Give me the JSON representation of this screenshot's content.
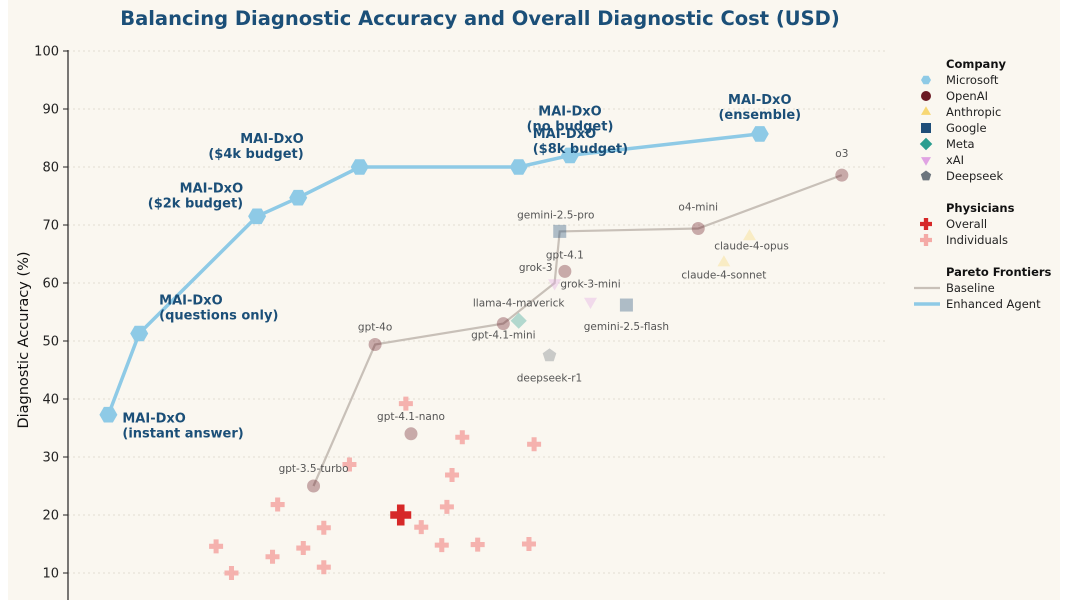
{
  "chart_data": {
    "type": "scatter",
    "title": "Balancing Diagnostic Accuracy and Overall Diagnostic Cost (USD)",
    "ylabel": "Diagnostic Accuracy (%)",
    "ylim": [
      8,
      105
    ],
    "yticks": [
      10,
      20,
      30,
      40,
      50,
      60,
      70,
      80,
      90,
      100
    ],
    "grid": true,
    "legend_position": "right",
    "colors": {
      "microsoft": "#8ecae6",
      "openai": "#6b1a24",
      "anthropic": "#f7d774",
      "google": "#1f4e79",
      "meta": "#2a9d8f",
      "xai": "#e0a3e3",
      "deepseek": "#6c757d",
      "physician": "#d62828",
      "individual": "#f4aaa6",
      "baseline": "#c8c0b8",
      "enhanced": "#8ecae6",
      "mai_label": "#1b4f78",
      "plot_bg": "#faf7f0"
    },
    "mai_dxo": {
      "name": "Enhanced Agent",
      "points": [
        {
          "label_line1": "MAI-DxO",
          "label_line2": "(instant answer)",
          "x": 0.3,
          "y": 37.3
        },
        {
          "label_line1": "MAI-DxO",
          "label_line2": "(questions only)",
          "x": 0.9,
          "y": 51.3
        },
        {
          "label_line1": "MAI-DxO",
          "label_line2": "($2k budget)",
          "x": 3.2,
          "y": 71.5
        },
        {
          "label_line1": "",
          "label_line2": "",
          "x": 4.0,
          "y": 74.7
        },
        {
          "label_line1": "MAI-DxO",
          "label_line2": "($4k budget)",
          "x": 5.2,
          "y": 80.0
        },
        {
          "label_line1": "MAI-DxO",
          "label_line2": "($8k budget)",
          "x": 8.3,
          "y": 80.0
        },
        {
          "label_line1": "MAI-DxO",
          "label_line2": "(no budget)",
          "x": 9.3,
          "y": 82.0
        },
        {
          "label_line1": "MAI-DxO",
          "label_line2": "(ensemble)",
          "x": 13.0,
          "y": 85.7
        }
      ]
    },
    "baseline_models": [
      {
        "label": "gpt-3.5-turbo",
        "company": "openai",
        "x": 4.3,
        "y": 25.0
      },
      {
        "label": "gpt-4o",
        "company": "openai",
        "x": 5.5,
        "y": 49.4
      },
      {
        "label": "gpt-4.1-nano",
        "company": "openai",
        "x": 6.2,
        "y": 34.0
      },
      {
        "label": "gpt-4.1-mini",
        "company": "openai",
        "x": 8.0,
        "y": 53.0
      },
      {
        "label": "llama-4-maverick",
        "company": "meta",
        "x": 8.3,
        "y": 53.5
      },
      {
        "label": "grok-3",
        "company": "xai",
        "x": 9.0,
        "y": 60.0
      },
      {
        "label": "gpt-4.1",
        "company": "openai",
        "x": 9.2,
        "y": 62.0
      },
      {
        "label": "grok-3-mini",
        "company": "xai",
        "x": 9.7,
        "y": 56.8
      },
      {
        "label": "gemini-2.5-pro",
        "company": "google",
        "x": 9.1,
        "y": 68.9
      },
      {
        "label": "gemini-2.5-flash",
        "company": "google",
        "x": 10.4,
        "y": 56.2
      },
      {
        "label": "deepseek-r1",
        "company": "deepseek",
        "x": 8.9,
        "y": 47.5
      },
      {
        "label": "o4-mini",
        "company": "openai",
        "x": 11.8,
        "y": 69.4
      },
      {
        "label": "claude-4-opus",
        "company": "anthropic",
        "x": 12.8,
        "y": 68.0
      },
      {
        "label": "claude-4-sonnet",
        "company": "anthropic",
        "x": 12.3,
        "y": 63.5
      },
      {
        "label": "o3",
        "company": "openai",
        "x": 14.6,
        "y": 78.6
      }
    ],
    "baseline_frontier": [
      {
        "x": 4.3,
        "y": 25.0
      },
      {
        "x": 5.5,
        "y": 49.4
      },
      {
        "x": 8.0,
        "y": 53.0
      },
      {
        "x": 9.0,
        "y": 60.0
      },
      {
        "x": 9.1,
        "y": 68.9
      },
      {
        "x": 11.8,
        "y": 69.4
      },
      {
        "x": 14.6,
        "y": 78.6
      }
    ],
    "physicians_overall": {
      "x": 6.0,
      "y": 20.0
    },
    "physicians_individuals": [
      {
        "x": 2.4,
        "y": 14.6
      },
      {
        "x": 2.7,
        "y": 10.0
      },
      {
        "x": 3.5,
        "y": 12.8
      },
      {
        "x": 3.6,
        "y": 21.8
      },
      {
        "x": 4.1,
        "y": 14.3
      },
      {
        "x": 4.5,
        "y": 17.8
      },
      {
        "x": 4.5,
        "y": 11.0
      },
      {
        "x": 5.0,
        "y": 28.7
      },
      {
        "x": 6.1,
        "y": 39.2
      },
      {
        "x": 6.4,
        "y": 17.9
      },
      {
        "x": 6.8,
        "y": 14.8
      },
      {
        "x": 6.9,
        "y": 21.4
      },
      {
        "x": 7.0,
        "y": 26.9
      },
      {
        "x": 7.2,
        "y": 33.4
      },
      {
        "x": 7.5,
        "y": 14.9
      },
      {
        "x": 8.5,
        "y": 15.0
      },
      {
        "x": 8.6,
        "y": 32.2
      }
    ],
    "legend": {
      "company_title": "Company",
      "companies": [
        {
          "key": "microsoft",
          "label": "Microsoft",
          "marker": "hexagon"
        },
        {
          "key": "openai",
          "label": "OpenAI",
          "marker": "circle"
        },
        {
          "key": "anthropic",
          "label": "Anthropic",
          "marker": "triangle-up"
        },
        {
          "key": "google",
          "label": "Google",
          "marker": "square"
        },
        {
          "key": "meta",
          "label": "Meta",
          "marker": "diamond"
        },
        {
          "key": "xai",
          "label": "xAI",
          "marker": "triangle-down"
        },
        {
          "key": "deepseek",
          "label": "Deepseek",
          "marker": "pentagon"
        }
      ],
      "physicians_title": "Physicians",
      "physicians": [
        {
          "key": "physician",
          "label": "Overall"
        },
        {
          "key": "individual",
          "label": "Individuals"
        }
      ],
      "frontiers_title": "Pareto Frontiers",
      "frontiers": [
        {
          "key": "baseline",
          "label": "Baseline"
        },
        {
          "key": "enhanced",
          "label": "Enhanced Agent"
        }
      ]
    }
  }
}
